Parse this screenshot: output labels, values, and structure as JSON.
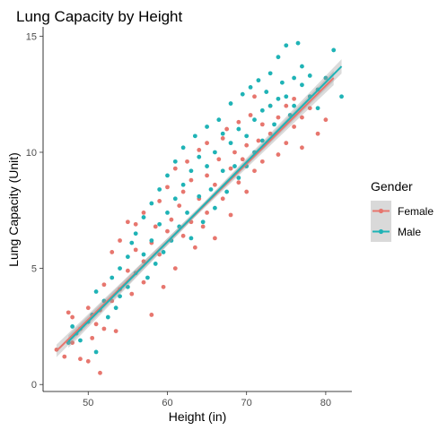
{
  "chart_data": {
    "type": "scatter",
    "title": "Lung Capacity by Height",
    "xlabel": "Height (in)",
    "ylabel": "Lung Capacity (Unit)",
    "xlim": [
      44.3,
      83.3
    ],
    "ylim": [
      -0.3,
      15.4
    ],
    "x_ticks": [
      50,
      60,
      70,
      80
    ],
    "y_ticks": [
      0,
      5,
      10,
      15
    ],
    "grid": false,
    "legend": {
      "title": "Gender",
      "position": "right"
    },
    "series": [
      {
        "name": "Female",
        "color": "#E7766E",
        "trend": {
          "x": [
            46,
            81
          ],
          "y": [
            1.45,
            13.2
          ]
        },
        "points": [
          [
            46,
            1.5
          ],
          [
            47,
            1.2
          ],
          [
            47.5,
            3.1
          ],
          [
            48,
            2.9
          ],
          [
            48,
            1.8
          ],
          [
            49,
            1.1
          ],
          [
            49,
            2.4
          ],
          [
            50,
            1.0
          ],
          [
            50,
            3.3
          ],
          [
            50.5,
            2.0
          ],
          [
            51,
            2.6
          ],
          [
            51.5,
            0.5
          ],
          [
            51.5,
            3.2
          ],
          [
            52,
            2.4
          ],
          [
            52,
            4.3
          ],
          [
            53,
            3.6
          ],
          [
            53,
            5.7
          ],
          [
            53.5,
            2.3
          ],
          [
            54,
            6.2
          ],
          [
            54,
            4.1
          ],
          [
            55,
            4.9
          ],
          [
            55,
            7.0
          ],
          [
            55.5,
            3.9
          ],
          [
            56,
            5.8
          ],
          [
            56,
            6.9
          ],
          [
            57,
            4.4
          ],
          [
            57,
            5.3
          ],
          [
            57,
            7.4
          ],
          [
            58,
            3.0
          ],
          [
            58,
            6.1
          ],
          [
            58.5,
            6.8
          ],
          [
            59,
            5.6
          ],
          [
            59,
            7.9
          ],
          [
            59.5,
            4.2
          ],
          [
            60,
            6.6
          ],
          [
            60,
            8.5
          ],
          [
            60.5,
            7.1
          ],
          [
            61,
            5.0
          ],
          [
            61,
            9.3
          ],
          [
            61.5,
            7.7
          ],
          [
            62,
            6.4
          ],
          [
            62,
            8.3
          ],
          [
            62.5,
            9.6
          ],
          [
            63,
            7.0
          ],
          [
            63,
            8.8
          ],
          [
            63.5,
            5.9
          ],
          [
            64,
            8.0
          ],
          [
            64,
            10.1
          ],
          [
            64.5,
            6.8
          ],
          [
            65,
            9.0
          ],
          [
            65,
            7.4
          ],
          [
            65,
            10.4
          ],
          [
            66,
            8.6
          ],
          [
            66,
            6.3
          ],
          [
            66.5,
            9.7
          ],
          [
            67,
            10.6
          ],
          [
            67,
            8.0
          ],
          [
            67.5,
            11.0
          ],
          [
            68,
            9.3
          ],
          [
            68,
            7.3
          ],
          [
            68.5,
            10.0
          ],
          [
            69,
            8.7
          ],
          [
            69,
            11.3
          ],
          [
            69.5,
            9.7
          ],
          [
            70,
            10.3
          ],
          [
            70,
            8.3
          ],
          [
            70.5,
            11.6
          ],
          [
            71,
            9.2
          ],
          [
            71,
            12.4
          ],
          [
            71.5,
            10.5
          ],
          [
            72,
            11.2
          ],
          [
            72,
            9.6
          ],
          [
            73,
            10.8
          ],
          [
            73,
            12.0
          ],
          [
            74,
            11.5
          ],
          [
            74,
            9.9
          ],
          [
            75,
            12.0
          ],
          [
            75,
            10.4
          ],
          [
            76,
            12.3
          ],
          [
            76,
            11.1
          ],
          [
            77,
            11.5
          ],
          [
            77,
            10.2
          ],
          [
            78,
            11.9
          ],
          [
            79,
            10.8
          ],
          [
            80,
            11.4
          ]
        ]
      },
      {
        "name": "Male",
        "color": "#1FB3B6",
        "trend": {
          "x": [
            47.5,
            82
          ],
          "y": [
            1.85,
            13.7
          ]
        },
        "points": [
          [
            47.5,
            1.8
          ],
          [
            48,
            2.5
          ],
          [
            48.5,
            2.2
          ],
          [
            49,
            1.9
          ],
          [
            50,
            2.7
          ],
          [
            50.5,
            3.0
          ],
          [
            51,
            1.4
          ],
          [
            51,
            4.0
          ],
          [
            52,
            3.6
          ],
          [
            52.5,
            2.9
          ],
          [
            53,
            4.6
          ],
          [
            53.5,
            3.3
          ],
          [
            54,
            5.0
          ],
          [
            54,
            3.8
          ],
          [
            55,
            5.5
          ],
          [
            55,
            4.2
          ],
          [
            55.5,
            6.1
          ],
          [
            56,
            4.8
          ],
          [
            56,
            6.5
          ],
          [
            57,
            5.6
          ],
          [
            57,
            7.2
          ],
          [
            57.5,
            4.6
          ],
          [
            58,
            6.2
          ],
          [
            58,
            7.8
          ],
          [
            58.5,
            5.2
          ],
          [
            59,
            6.9
          ],
          [
            59,
            8.4
          ],
          [
            59.5,
            5.7
          ],
          [
            60,
            7.4
          ],
          [
            60,
            9.0
          ],
          [
            60.5,
            6.2
          ],
          [
            61,
            8.0
          ],
          [
            61,
            9.6
          ],
          [
            61.5,
            6.8
          ],
          [
            62,
            8.6
          ],
          [
            62,
            10.2
          ],
          [
            62.5,
            7.4
          ],
          [
            63,
            9.2
          ],
          [
            63,
            6.3
          ],
          [
            63.5,
            10.7
          ],
          [
            64,
            8.1
          ],
          [
            64,
            9.8
          ],
          [
            64.5,
            7.0
          ],
          [
            65,
            9.4
          ],
          [
            65,
            11.1
          ],
          [
            65.5,
            8.4
          ],
          [
            66,
            10.0
          ],
          [
            66,
            7.6
          ],
          [
            66.5,
            11.4
          ],
          [
            67,
            9.2
          ],
          [
            67,
            10.8
          ],
          [
            67.5,
            8.3
          ],
          [
            68,
            10.4
          ],
          [
            68,
            12.1
          ],
          [
            68.5,
            9.4
          ],
          [
            69,
            11.0
          ],
          [
            69,
            8.9
          ],
          [
            69.5,
            12.5
          ],
          [
            70,
            10.7
          ],
          [
            70,
            9.4
          ],
          [
            70.5,
            12.8
          ],
          [
            71,
            11.4
          ],
          [
            71,
            10.0
          ],
          [
            71.5,
            13.1
          ],
          [
            72,
            11.8
          ],
          [
            72,
            10.5
          ],
          [
            72.5,
            12.6
          ],
          [
            73,
            12.0
          ],
          [
            73,
            13.4
          ],
          [
            73.5,
            11.2
          ],
          [
            74,
            12.3
          ],
          [
            74,
            14.1
          ],
          [
            74.5,
            13.0
          ],
          [
            75,
            12.4
          ],
          [
            75,
            14.6
          ],
          [
            75.5,
            11.6
          ],
          [
            76,
            13.2
          ],
          [
            76,
            12.0
          ],
          [
            76.5,
            14.7
          ],
          [
            77,
            12.9
          ],
          [
            77,
            13.7
          ],
          [
            78,
            12.4
          ],
          [
            78,
            13.3
          ],
          [
            79,
            12.7
          ],
          [
            79,
            11.9
          ],
          [
            80,
            13.2
          ],
          [
            81,
            14.4
          ],
          [
            82,
            12.4
          ]
        ]
      }
    ]
  }
}
